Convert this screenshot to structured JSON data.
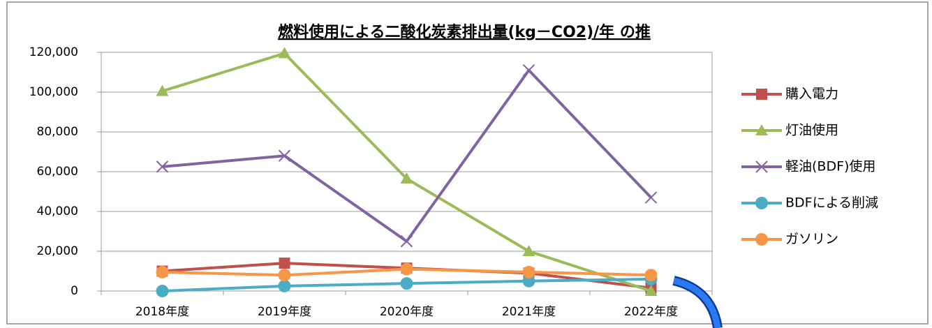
{
  "chart_data": {
    "type": "line",
    "title": "燃料使用による二酸化炭素排出量(kg－CO2)/年 の推",
    "categories": [
      "2018年度",
      "2019年度",
      "2020年度",
      "2021年度",
      "2022年度"
    ],
    "series": [
      {
        "name": "購入電力",
        "color": "#c0504d",
        "marker": "square",
        "values": [
          10000,
          14000,
          11500,
          9000,
          1500
        ]
      },
      {
        "name": "灯油使用",
        "color": "#9bbb59",
        "marker": "triangle",
        "values": [
          100500,
          119500,
          56500,
          20000,
          0
        ]
      },
      {
        "name": "軽油(BDF)使用",
        "color": "#8064a2",
        "marker": "x",
        "values": [
          62500,
          68000,
          25000,
          111000,
          47000
        ]
      },
      {
        "name": "BDFによる削減",
        "color": "#4bacc6",
        "marker": "circle",
        "values": [
          0,
          2500,
          3800,
          5000,
          6000
        ]
      },
      {
        "name": "ガソリン",
        "color": "#f79646",
        "marker": "circle",
        "values": [
          9500,
          8000,
          11000,
          9500,
          8000
        ]
      }
    ],
    "ylim": [
      0,
      120000
    ],
    "yticks": [
      0,
      {
        "value": 20000,
        "label": "20,000"
      },
      {
        "value": 40000,
        "label": "40,000"
      },
      {
        "value": 60000,
        "label": "60,000"
      },
      {
        "value": 80000,
        "label": "80,000"
      },
      {
        "value": 100000,
        "label": "100,000"
      },
      {
        "value": 120000,
        "label": "120,000"
      }
    ],
    "grid": true,
    "legend": "right"
  }
}
